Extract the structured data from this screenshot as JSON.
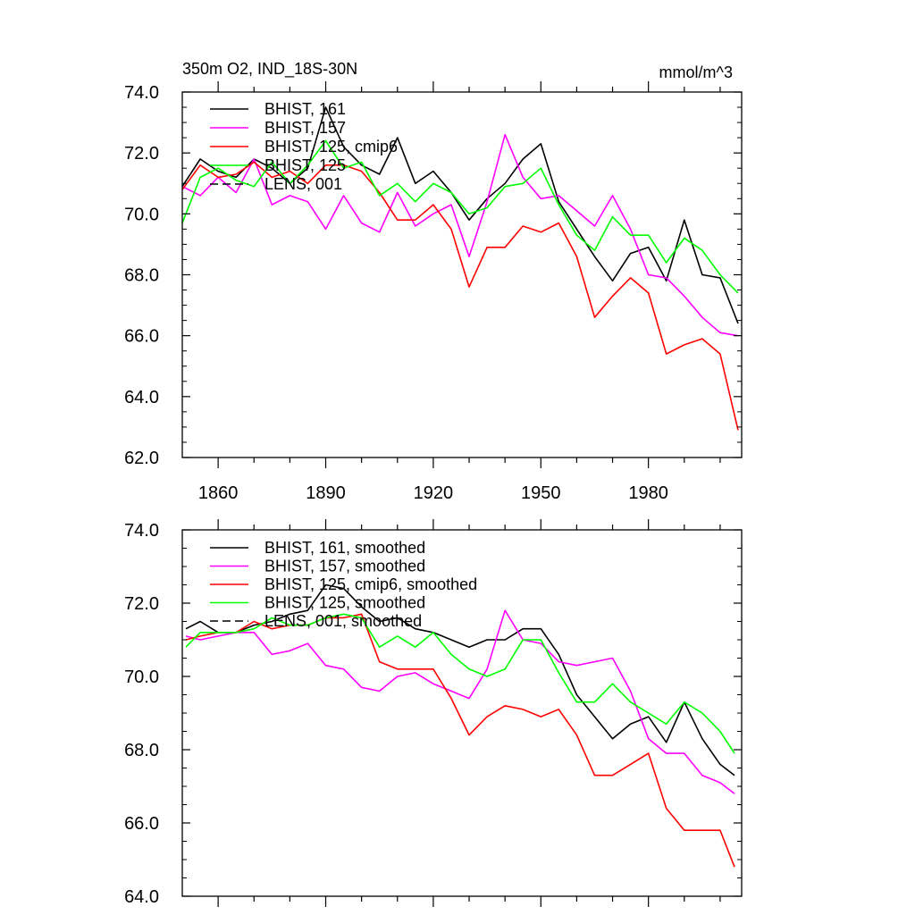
{
  "chart_data": [
    {
      "type": "line",
      "title": "350m O2, IND_18S-30N",
      "units": "mmol/m^3",
      "xlabel": "",
      "ylabel": "",
      "xlim": [
        1850,
        2006
      ],
      "ylim": [
        62,
        74
      ],
      "xticks": [
        1860,
        1890,
        1920,
        1950,
        1980
      ],
      "yticks": [
        "62.0",
        "64.0",
        "66.0",
        "68.0",
        "70.0",
        "72.0",
        "74.0"
      ],
      "grid": false,
      "legend": "top-left",
      "series": [
        {
          "name": "BHIST, 161",
          "color": "#000000",
          "x": [
            1850,
            1855,
            1860,
            1865,
            1870,
            1875,
            1880,
            1885,
            1890,
            1895,
            1900,
            1905,
            1910,
            1915,
            1920,
            1925,
            1930,
            1935,
            1940,
            1945,
            1950,
            1955,
            1960,
            1965,
            1970,
            1975,
            1980,
            1985,
            1990,
            1995,
            2000,
            2005
          ],
          "y": [
            70.9,
            71.8,
            71.4,
            71.2,
            71.8,
            71.5,
            71.0,
            71.5,
            73.5,
            72.2,
            71.6,
            71.3,
            72.5,
            71.0,
            71.4,
            70.7,
            69.8,
            70.5,
            71.0,
            71.8,
            72.3,
            70.4,
            69.5,
            68.6,
            67.8,
            68.7,
            68.9,
            67.8,
            69.8,
            68.0,
            67.9,
            66.4
          ]
        },
        {
          "name": "BHIST, 157",
          "color": "#ff00ff",
          "x": [
            1850,
            1855,
            1860,
            1865,
            1870,
            1875,
            1880,
            1885,
            1890,
            1895,
            1900,
            1905,
            1910,
            1915,
            1920,
            1925,
            1930,
            1935,
            1940,
            1945,
            1950,
            1955,
            1960,
            1965,
            1970,
            1975,
            1980,
            1985,
            1990,
            1995,
            2000,
            2005
          ],
          "y": [
            70.9,
            70.6,
            71.2,
            70.7,
            71.8,
            70.3,
            70.6,
            70.4,
            69.5,
            70.6,
            69.7,
            69.4,
            70.7,
            69.6,
            70.0,
            70.3,
            68.6,
            70.4,
            72.6,
            71.2,
            70.5,
            70.6,
            70.1,
            69.6,
            70.6,
            69.5,
            68.0,
            67.9,
            67.3,
            66.6,
            66.1,
            66.0
          ]
        },
        {
          "name": "BHIST, 125, cmip6",
          "color": "#ff0000",
          "x": [
            1850,
            1855,
            1860,
            1865,
            1870,
            1875,
            1880,
            1885,
            1890,
            1895,
            1900,
            1905,
            1910,
            1915,
            1920,
            1925,
            1930,
            1935,
            1940,
            1945,
            1950,
            1955,
            1960,
            1965,
            1970,
            1975,
            1980,
            1985,
            1990,
            1995,
            2000,
            2005
          ],
          "y": [
            70.8,
            71.6,
            71.2,
            71.3,
            71.7,
            71.2,
            71.4,
            71.0,
            71.6,
            71.6,
            71.4,
            70.7,
            69.8,
            69.8,
            70.3,
            69.5,
            67.6,
            68.9,
            68.9,
            69.6,
            69.4,
            69.7,
            68.6,
            66.6,
            67.3,
            67.9,
            67.4,
            65.4,
            65.7,
            65.9,
            65.4,
            62.9
          ]
        },
        {
          "name": "BHIST, 125",
          "color": "#00ff00",
          "x": [
            1850,
            1855,
            1860,
            1865,
            1870,
            1875,
            1880,
            1885,
            1890,
            1895,
            1900,
            1905,
            1910,
            1915,
            1920,
            1925,
            1930,
            1935,
            1940,
            1945,
            1950,
            1955,
            1960,
            1965,
            1970,
            1975,
            1980,
            1985,
            1990,
            1995,
            2000,
            2005
          ],
          "y": [
            69.7,
            71.2,
            71.5,
            71.1,
            70.9,
            71.7,
            71.0,
            71.6,
            72.4,
            71.5,
            71.7,
            70.6,
            71.0,
            70.4,
            71.0,
            70.7,
            70.0,
            70.2,
            70.9,
            71.0,
            71.5,
            70.3,
            69.3,
            68.8,
            69.9,
            69.3,
            69.3,
            68.4,
            69.2,
            68.8,
            68.0,
            67.4
          ]
        }
      ]
    },
    {
      "type": "line",
      "xlim": [
        1850,
        2006
      ],
      "ylim": [
        64,
        74
      ],
      "yticks": [
        "64.0",
        "66.0",
        "68.0",
        "70.0",
        "72.0",
        "74.0"
      ],
      "grid": false,
      "legend": "top-left",
      "series": [
        {
          "name": "BHIST, 161, smoothed",
          "color": "#000000",
          "x": [
            1851,
            1855,
            1860,
            1865,
            1870,
            1875,
            1880,
            1885,
            1890,
            1895,
            1900,
            1905,
            1910,
            1915,
            1920,
            1925,
            1930,
            1935,
            1940,
            1945,
            1950,
            1955,
            1960,
            1965,
            1970,
            1975,
            1980,
            1985,
            1990,
            1995,
            2000,
            2004
          ],
          "y": [
            71.3,
            71.5,
            71.2,
            71.2,
            71.4,
            71.5,
            71.7,
            71.8,
            72.5,
            72.4,
            71.9,
            71.5,
            71.6,
            71.3,
            71.2,
            71.0,
            70.8,
            71.0,
            71.0,
            71.3,
            71.3,
            70.6,
            69.5,
            68.9,
            68.3,
            68.7,
            68.9,
            68.2,
            69.3,
            68.3,
            67.6,
            67.3
          ]
        },
        {
          "name": "BHIST, 157, smoothed",
          "color": "#ff00ff",
          "x": [
            1851,
            1855,
            1860,
            1865,
            1870,
            1875,
            1880,
            1885,
            1890,
            1895,
            1900,
            1905,
            1910,
            1915,
            1920,
            1925,
            1930,
            1935,
            1940,
            1945,
            1950,
            1955,
            1960,
            1965,
            1970,
            1975,
            1980,
            1985,
            1990,
            1995,
            2000,
            2004
          ],
          "y": [
            71.1,
            71.0,
            71.1,
            71.2,
            71.2,
            70.6,
            70.7,
            70.9,
            70.3,
            70.2,
            69.7,
            69.6,
            70.0,
            70.1,
            69.8,
            69.6,
            69.4,
            70.2,
            71.8,
            71.0,
            70.9,
            70.4,
            70.3,
            70.4,
            70.5,
            69.6,
            68.3,
            67.9,
            67.9,
            67.3,
            67.1,
            66.8
          ]
        },
        {
          "name": "BHIST, 125, cmip6, smoothed",
          "color": "#ff0000",
          "x": [
            1851,
            1855,
            1860,
            1865,
            1870,
            1875,
            1880,
            1885,
            1890,
            1895,
            1900,
            1905,
            1910,
            1915,
            1920,
            1925,
            1930,
            1935,
            1940,
            1945,
            1950,
            1955,
            1960,
            1965,
            1970,
            1975,
            1980,
            1985,
            1990,
            1995,
            2000,
            2004
          ],
          "y": [
            71.0,
            71.1,
            71.2,
            71.2,
            71.5,
            71.3,
            71.4,
            71.4,
            71.6,
            71.6,
            71.7,
            70.4,
            70.2,
            70.2,
            70.2,
            69.4,
            68.4,
            68.9,
            69.2,
            69.1,
            68.9,
            69.1,
            68.4,
            67.3,
            67.3,
            67.6,
            67.9,
            66.4,
            65.8,
            65.8,
            65.8,
            64.8
          ]
        },
        {
          "name": "BHIST, 125, smoothed",
          "color": "#00ff00",
          "x": [
            1851,
            1855,
            1860,
            1865,
            1870,
            1875,
            1880,
            1885,
            1890,
            1895,
            1900,
            1905,
            1910,
            1915,
            1920,
            1925,
            1930,
            1935,
            1940,
            1945,
            1950,
            1955,
            1960,
            1965,
            1970,
            1975,
            1980,
            1985,
            1990,
            1995,
            2000,
            2004
          ],
          "y": [
            70.8,
            71.2,
            71.2,
            71.2,
            71.3,
            71.6,
            71.4,
            71.4,
            71.6,
            71.7,
            71.6,
            70.8,
            71.1,
            70.8,
            71.2,
            70.6,
            70.2,
            70.0,
            70.2,
            71.0,
            71.0,
            70.1,
            69.3,
            69.3,
            69.8,
            69.3,
            69.0,
            68.7,
            69.3,
            69.0,
            68.5,
            67.9
          ]
        }
      ]
    }
  ],
  "legends": {
    "top": [
      "BHIST, 161",
      "BHIST, 157",
      "BHIST, 125, cmip6",
      "BHIST, 125",
      "LENS, 001"
    ],
    "bottom": [
      "BHIST, 161, smoothed",
      "BHIST, 157, smoothed",
      "BHIST, 125, cmip6, smoothed",
      "BHIST, 125, smoothed",
      "LENS, 001, smoothed"
    ]
  }
}
